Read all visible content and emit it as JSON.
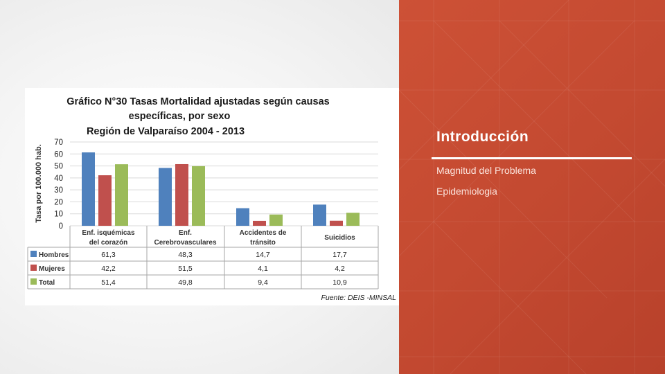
{
  "slide": {
    "title": "Introducción",
    "bullets": [
      "Magnitud del Problema",
      "Epidemiologia"
    ]
  },
  "colors": {
    "panel": "#c74b33",
    "hombres": "#4f81bd",
    "mujeres": "#c0504d",
    "total": "#9bbb59"
  },
  "chart_data": {
    "type": "bar",
    "title_lines": [
      "Gráfico N°30 Tasas Mortalidad ajustadas según causas",
      "específicas, por sexo",
      "Región de Valparaíso 2004 - 2013"
    ],
    "ylabel": "Tasa por 100.000 hab.",
    "ylim": [
      0,
      70
    ],
    "yticks": [
      "0",
      "10",
      "20",
      "30",
      "40",
      "50",
      "60",
      "70"
    ],
    "categories": [
      [
        "Enf. isquémicas",
        "del corazón"
      ],
      [
        "Enf.",
        "Cerebrovasculares"
      ],
      [
        "Accidentes de",
        "tránsito"
      ],
      [
        "Suicidios"
      ]
    ],
    "series": [
      {
        "name": "Hombres",
        "values": [
          61.3,
          48.3,
          14.7,
          17.7
        ],
        "labels": [
          "61,3",
          "48,3",
          "14,7",
          "17,7"
        ]
      },
      {
        "name": "Mujeres",
        "values": [
          42.2,
          51.5,
          4.1,
          4.2
        ],
        "labels": [
          "42,2",
          "51,5",
          "4,1",
          "4,2"
        ]
      },
      {
        "name": "Total",
        "values": [
          51.4,
          49.8,
          9.4,
          10.9
        ],
        "labels": [
          "51,4",
          "49,8",
          "9,4",
          "10,9"
        ]
      }
    ],
    "grid": true,
    "legend": "data-table",
    "source": "Fuente: DEIS -MINSAL"
  }
}
